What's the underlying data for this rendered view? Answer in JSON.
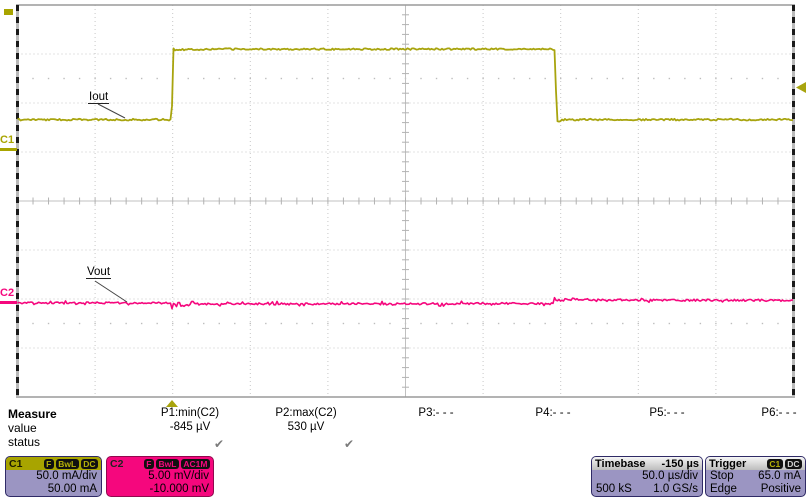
{
  "annotations": {
    "c1_label": "Iout",
    "c2_label": "Vout"
  },
  "channel_markers": {
    "c1": "C1",
    "c2": "C2"
  },
  "measure": {
    "title": "Measure",
    "value_label": "value",
    "status_label": "status",
    "params": [
      {
        "label": "P1:min(C2)",
        "value": "-845 µV",
        "status_glyph": "✔"
      },
      {
        "label": "P2:max(C2)",
        "value": "530 µV",
        "status_glyph": "✔"
      },
      {
        "label": "P3:- - -",
        "value": "",
        "status_glyph": ""
      },
      {
        "label": "P4:- - -",
        "value": "",
        "status_glyph": ""
      },
      {
        "label": "P5:- - -",
        "value": "",
        "status_glyph": ""
      },
      {
        "label": "P6:- - -",
        "value": "",
        "status_glyph": ""
      }
    ]
  },
  "channels": {
    "c1": {
      "name": "C1",
      "badges": [
        "F",
        "BwL",
        "DC"
      ],
      "scale": "50.0 mA/div",
      "offset": "50.00 mA",
      "color": "#a8a40e"
    },
    "c2": {
      "name": "C2",
      "badges": [
        "F",
        "BwL",
        "AC1M"
      ],
      "scale": "5.00 mV/div",
      "offset": "-10.000 mV",
      "color": "#f5077d"
    }
  },
  "timebase": {
    "title": "Timebase",
    "delay": "-150 µs",
    "scale": "50.0 µs/div",
    "samples": "500 kS",
    "rate": "1.0 GS/s"
  },
  "trigger": {
    "title": "Trigger",
    "source_badge": "C1",
    "coupling_badge": "DC",
    "mode_label": "Stop",
    "level": "65.0 mA",
    "type_label": "Edge",
    "slope": "Positive"
  },
  "chart_data": {
    "type": "line",
    "x_unit": "µs",
    "x_range_us": [
      -250,
      250
    ],
    "timebase_per_div": "50.0 µs",
    "grid": {
      "x_divisions": 10,
      "y_divisions": 8,
      "grid_on": true
    },
    "series": [
      {
        "name": "Iout (C1)",
        "unit": "mA",
        "per_div": 50.0,
        "points": [
          [
            -250,
            33
          ],
          [
            -150.6,
            33
          ],
          [
            -149.8,
            106.5
          ],
          [
            -149,
            104.5
          ],
          [
            -120,
            105
          ],
          [
            95.8,
            105
          ],
          [
            96.4,
            103
          ],
          [
            97.4,
            31.5
          ],
          [
            99,
            31
          ],
          [
            101,
            33
          ],
          [
            250,
            33
          ]
        ]
      },
      {
        "name": "Vout (C2)",
        "unit": "mV",
        "per_div": 5.0,
        "points": [
          [
            -250,
            -0.1
          ],
          [
            -151,
            -0.1
          ],
          [
            -150.3,
            -0.845
          ],
          [
            -149.2,
            0.1
          ],
          [
            -147.8,
            -0.6
          ],
          [
            -146.3,
            0.08
          ],
          [
            -144.5,
            -0.45
          ],
          [
            -142,
            -0.32
          ],
          [
            -138,
            -0.2
          ],
          [
            -60,
            -0.2
          ],
          [
            0,
            -0.18
          ],
          [
            95.4,
            -0.15
          ],
          [
            96.1,
            0.53
          ],
          [
            97.3,
            0.0
          ],
          [
            98.6,
            0.4
          ],
          [
            100.5,
            0.1
          ],
          [
            103,
            0.28
          ],
          [
            150,
            0.2
          ],
          [
            250,
            0.17
          ]
        ]
      }
    ],
    "measured": {
      "min_C2": "-845 µV",
      "max_C2": "530 µV"
    },
    "trigger_level": "65.0 mA",
    "trigger_time_us": -150
  }
}
